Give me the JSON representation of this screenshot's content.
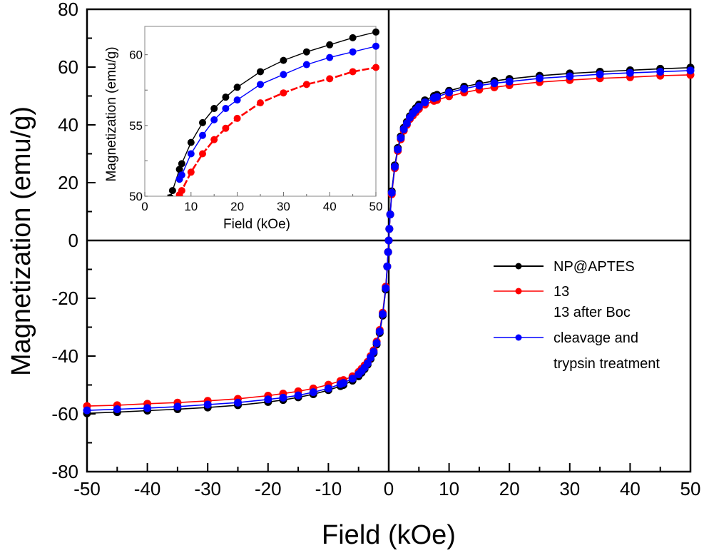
{
  "chart_data": [
    {
      "id": "main",
      "type": "line",
      "title": "",
      "xlabel": "Field (kOe)",
      "ylabel": "Magnetization (emu/g)",
      "xlim": [
        -50,
        50
      ],
      "ylim": [
        -80,
        80
      ],
      "xticks": [
        -50,
        -40,
        -30,
        -20,
        -10,
        0,
        10,
        20,
        30,
        40,
        50
      ],
      "xtick_labels": [
        "-50",
        "-40",
        "-30",
        "-20",
        "-10",
        "0",
        "10",
        "20",
        "30",
        "40",
        "50"
      ],
      "yticks": [
        -80,
        -60,
        -40,
        -20,
        0,
        20,
        40,
        60,
        80
      ],
      "ytick_labels": [
        "-80",
        "-60",
        "-40",
        "-20",
        "0",
        "20",
        "40",
        "60",
        "80"
      ],
      "grid": false,
      "zero_lines": true,
      "legend": {
        "placement": "center-right",
        "entries": [
          {
            "label": "NP@APTES",
            "color": "#000000"
          },
          {
            "label": "13",
            "color": "#ff0000"
          },
          {
            "label_lines": [
              "13 after Boc",
              "cleavage and",
              "trypsin treatment"
            ],
            "color": "#0000ff"
          }
        ]
      },
      "x": [
        0,
        0.1,
        0.25,
        0.5,
        1,
        1.5,
        2,
        2.5,
        3,
        3.5,
        4,
        4.5,
        5,
        6,
        7.5,
        8,
        10,
        12.5,
        15,
        17.5,
        20,
        25,
        30,
        35,
        40,
        45,
        50
      ],
      "series": [
        {
          "name": "NP@APTES",
          "color": "#000000",
          "values": [
            0,
            4,
            9,
            17,
            26,
            32,
            36,
            39,
            41,
            43,
            44.5,
            45.8,
            47,
            48.5,
            50,
            50.4,
            51.8,
            53.2,
            54.3,
            55.2,
            55.9,
            57,
            57.8,
            58.4,
            58.9,
            59.4,
            59.8
          ]
        },
        {
          "name": "13",
          "color": "#ff0000",
          "values": [
            0,
            4,
            9,
            16,
            25,
            31,
            35,
            38,
            40,
            42,
            43.2,
            44.4,
            45.5,
            47,
            48.3,
            48.6,
            49.9,
            51.2,
            52.2,
            53,
            53.7,
            54.8,
            55.5,
            56.1,
            56.5,
            57,
            57.3
          ]
        },
        {
          "name": "13 after Boc cleavage and trypsin treatment",
          "color": "#0000ff",
          "values": [
            0,
            4,
            9,
            16.5,
            25.5,
            31.5,
            35.5,
            38.5,
            40.5,
            42.5,
            44,
            45.2,
            46.3,
            47.8,
            49.3,
            49.7,
            51.2,
            52.5,
            53.6,
            54.4,
            55,
            56.1,
            56.8,
            57.5,
            58,
            58.4,
            58.8
          ]
        }
      ]
    },
    {
      "id": "inset",
      "type": "line",
      "title": "",
      "xlabel": "Field (kOe)",
      "ylabel": "Magnetization (emu/g)",
      "xlim": [
        0,
        50
      ],
      "ylim": [
        50,
        62
      ],
      "xticks": [
        0,
        10,
        20,
        30,
        40,
        50
      ],
      "xtick_labels": [
        "0",
        "10",
        "20",
        "30",
        "40",
        "50"
      ],
      "yticks": [
        50,
        55,
        60
      ],
      "ytick_labels": [
        "50",
        "55",
        "60"
      ],
      "grid": false,
      "series": [
        {
          "name": "NP@APTES",
          "color": "#000000",
          "x": [
            5.5,
            6,
            7.5,
            8,
            10,
            12.5,
            15,
            17.5,
            20,
            25,
            30,
            35,
            40,
            45,
            50
          ],
          "values": [
            49.9,
            50.4,
            51.9,
            52.3,
            53.8,
            55.2,
            56.2,
            57.0,
            57.7,
            58.8,
            59.6,
            60.2,
            60.7,
            61.2,
            61.6
          ]
        },
        {
          "name": "13",
          "color": "#ff0000",
          "x": [
            7.5,
            8,
            10,
            12.5,
            15,
            17.5,
            20,
            25,
            30,
            35,
            40,
            45,
            50
          ],
          "values": [
            50.1,
            50.4,
            51.7,
            53.0,
            54.0,
            54.8,
            55.5,
            56.6,
            57.3,
            57.9,
            58.3,
            58.8,
            59.1
          ]
        },
        {
          "name": "13 after Boc cleavage and trypsin treatment",
          "color": "#0000ff",
          "x": [
            7.5,
            8,
            10,
            12.5,
            15,
            17.5,
            20,
            25,
            30,
            35,
            40,
            45,
            50
          ],
          "values": [
            51.2,
            51.5,
            53.0,
            54.3,
            55.4,
            56.2,
            56.8,
            57.9,
            58.6,
            59.3,
            59.8,
            60.2,
            60.6
          ]
        }
      ]
    }
  ]
}
